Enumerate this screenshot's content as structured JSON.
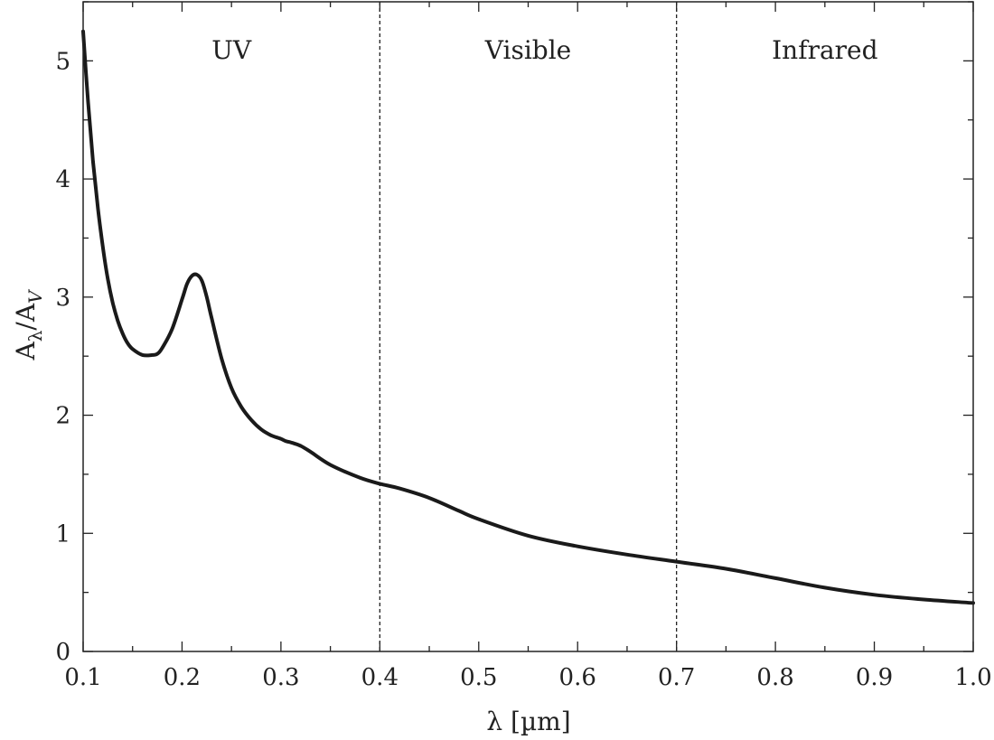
{
  "chart_data": {
    "type": "line",
    "title": "",
    "xlabel": "λ [µm]",
    "ylabel": "A_λ/A_V",
    "ylabel_parts": {
      "base": "A",
      "sub1": "λ",
      "slash": "/A",
      "sub2": "V"
    },
    "xlim": [
      0.1,
      1.0
    ],
    "ylim": [
      0,
      5.5
    ],
    "x_ticks": [
      "0.1",
      "0.2",
      "0.3",
      "0.4",
      "0.5",
      "0.6",
      "0.7",
      "0.8",
      "0.9",
      "1.0"
    ],
    "y_ticks": [
      "0",
      "1",
      "2",
      "3",
      "4",
      "5"
    ],
    "grid": false,
    "regions": [
      {
        "label": "UV",
        "from": 0.1,
        "to": 0.4
      },
      {
        "label": "Visible",
        "from": 0.4,
        "to": 0.7
      },
      {
        "label": "Infrared",
        "from": 0.7,
        "to": 1.0
      }
    ],
    "region_boundaries": [
      0.4,
      0.7
    ],
    "series": [
      {
        "color": "#1a1a1a",
        "x": [
          0.1,
          0.105,
          0.11,
          0.115,
          0.12,
          0.125,
          0.13,
          0.135,
          0.14,
          0.145,
          0.15,
          0.16,
          0.17,
          0.175,
          0.18,
          0.19,
          0.2,
          0.205,
          0.21,
          0.215,
          0.22,
          0.225,
          0.23,
          0.24,
          0.25,
          0.26,
          0.27,
          0.28,
          0.29,
          0.3,
          0.305,
          0.31,
          0.32,
          0.33,
          0.35,
          0.38,
          0.4,
          0.42,
          0.45,
          0.48,
          0.5,
          0.55,
          0.6,
          0.65,
          0.7,
          0.75,
          0.8,
          0.85,
          0.9,
          0.95,
          1.0
        ],
        "y": [
          5.25,
          4.65,
          4.15,
          3.75,
          3.42,
          3.15,
          2.95,
          2.8,
          2.69,
          2.61,
          2.56,
          2.51,
          2.51,
          2.52,
          2.57,
          2.73,
          2.98,
          3.11,
          3.18,
          3.19,
          3.14,
          3.0,
          2.82,
          2.48,
          2.23,
          2.07,
          1.96,
          1.88,
          1.83,
          1.8,
          1.78,
          1.77,
          1.74,
          1.69,
          1.58,
          1.47,
          1.42,
          1.38,
          1.3,
          1.19,
          1.12,
          0.98,
          0.89,
          0.82,
          0.76,
          0.7,
          0.62,
          0.54,
          0.48,
          0.44,
          0.41
        ]
      }
    ]
  }
}
